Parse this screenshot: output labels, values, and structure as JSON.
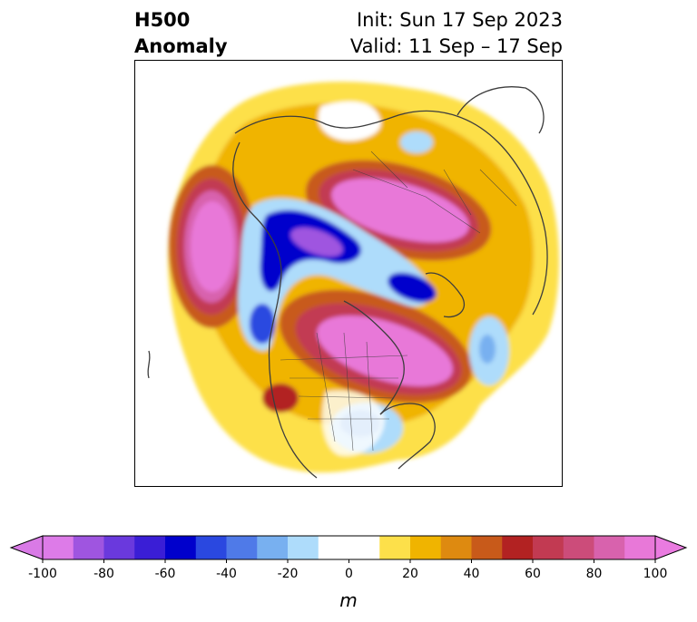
{
  "title": {
    "left_line1": "H500",
    "left_line2": "Anomaly",
    "right_line1": "Init: Sun 17 Sep 2023",
    "right_line2": "Valid: 11 Sep – 17 Sep"
  },
  "colorbar": {
    "unit": "m",
    "min": -100,
    "max": 100,
    "step": 10,
    "extend": "both",
    "ticks": [
      "-100",
      "-80",
      "-60",
      "-40",
      "-20",
      "0",
      "20",
      "40",
      "60",
      "80",
      "100"
    ],
    "colors": [
      "#dd7be8",
      "#9f55e0",
      "#6a39dd",
      "#3a1ed6",
      "#0000cc",
      "#2a48e0",
      "#4f7ae8",
      "#78b0f0",
      "#aedcfb",
      "#ffffff",
      "#ffffff",
      "#fde04a",
      "#f0b400",
      "#de8a10",
      "#c85a1a",
      "#b22222",
      "#c23a52",
      "#cc4c7a",
      "#d862ad",
      "#e878d8"
    ],
    "extend_low_color": "#d97ae6",
    "extend_high_color": "#ea7be0"
  }
}
